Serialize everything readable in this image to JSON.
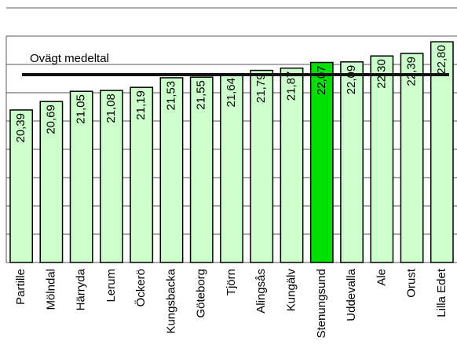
{
  "chart_data": {
    "type": "bar",
    "categories": [
      "Partille",
      "Mölndal",
      "Härryda",
      "Lerum",
      "Öckerö",
      "Kungsbacka",
      "Göteborg",
      "Tjörn",
      "Alingsås",
      "Kungälv",
      "Stenungsund",
      "Uddevalla",
      "Ale",
      "Orust",
      "Lilla Edet"
    ],
    "values": [
      20.39,
      20.69,
      21.05,
      21.08,
      21.19,
      21.53,
      21.55,
      21.64,
      21.79,
      21.87,
      22.07,
      22.09,
      22.3,
      22.39,
      22.8
    ],
    "value_labels": [
      "20,39",
      "20,69",
      "21,05",
      "21,08",
      "21,19",
      "21,53",
      "21,55",
      "21,64",
      "21,79",
      "21,87",
      "22,07",
      "22,09",
      "22,30",
      "22,39",
      "22,80"
    ],
    "colors": [
      "#ccffcc",
      "#ccffcc",
      "#ccffcc",
      "#ccffcc",
      "#ccffcc",
      "#ccffcc",
      "#ccffcc",
      "#ccffcc",
      "#ccffcc",
      "#ccffcc",
      "#00e000",
      "#ccffcc",
      "#ccffcc",
      "#ccffcc",
      "#ccffcc"
    ],
    "ylim": [
      15,
      24
    ],
    "yticks": [
      15,
      16,
      17,
      18,
      19,
      20,
      21,
      22,
      23,
      24
    ],
    "grid": true,
    "mean_line": {
      "label": "Ovägt medeltal",
      "value": 21.64
    }
  }
}
